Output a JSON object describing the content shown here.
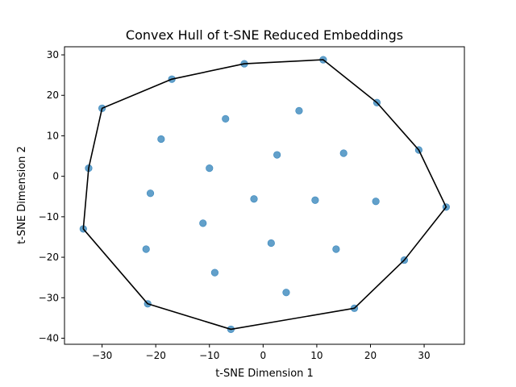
{
  "chart_data": {
    "type": "scatter",
    "title": "Convex Hull of t-SNE Reduced Embeddings",
    "xlabel": "t-SNE Dimension 1",
    "ylabel": "t-SNE Dimension 2",
    "xlim": [
      -37,
      37.5
    ],
    "ylim": [
      -41.5,
      32
    ],
    "xticks": [
      -30,
      -20,
      -10,
      0,
      10,
      20,
      30
    ],
    "yticks": [
      -40,
      -30,
      -20,
      -10,
      0,
      10,
      20,
      30
    ],
    "grid": false,
    "colors": {
      "points": "#1f77b4",
      "hull": "#000000"
    },
    "points": [
      [
        -33.5,
        -13
      ],
      [
        -32.5,
        2
      ],
      [
        -30,
        16.8
      ],
      [
        -17,
        24
      ],
      [
        -3.5,
        27.8
      ],
      [
        11.2,
        28.8
      ],
      [
        21.2,
        18.2
      ],
      [
        29,
        6.5
      ],
      [
        34.1,
        -7.6
      ],
      [
        26.3,
        -20.7
      ],
      [
        17,
        -32.6
      ],
      [
        -6,
        -37.8
      ],
      [
        -21.5,
        -31.5
      ],
      [
        -7,
        14.2
      ],
      [
        6.7,
        16.2
      ],
      [
        -19,
        9.2
      ],
      [
        2.6,
        5.3
      ],
      [
        15,
        5.7
      ],
      [
        -10,
        2
      ],
      [
        -21,
        -4.2
      ],
      [
        -1.7,
        -5.6
      ],
      [
        9.7,
        -5.9
      ],
      [
        21,
        -6.2
      ],
      [
        -11.2,
        -11.6
      ],
      [
        1.5,
        -16.5
      ],
      [
        -21.8,
        -18
      ],
      [
        13.6,
        -18
      ],
      [
        -9,
        -23.8
      ],
      [
        4.3,
        -28.7
      ]
    ],
    "hull": [
      [
        -33.5,
        -13
      ],
      [
        -32.5,
        2
      ],
      [
        -30,
        16.8
      ],
      [
        -17,
        24
      ],
      [
        -3.5,
        27.8
      ],
      [
        11.2,
        28.8
      ],
      [
        21.2,
        18.2
      ],
      [
        29,
        6.5
      ],
      [
        34.1,
        -7.6
      ],
      [
        26.3,
        -20.7
      ],
      [
        17,
        -32.6
      ],
      [
        -6,
        -37.8
      ],
      [
        -21.5,
        -31.5
      ],
      [
        -33.5,
        -13
      ]
    ]
  }
}
